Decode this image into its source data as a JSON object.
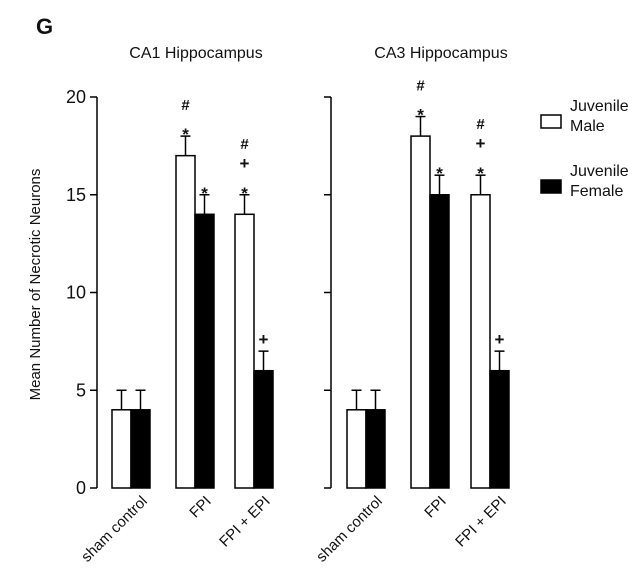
{
  "figure": {
    "panel_letter": "G",
    "legend": [
      {
        "label_lines": [
          "Juvenile",
          "Male"
        ],
        "fill": "#ffffff"
      },
      {
        "label_lines": [
          "Juvenile",
          "Female"
        ],
        "fill": "#000000"
      }
    ]
  },
  "chart_data": [
    {
      "type": "bar",
      "title": "CA1 Hippocampus",
      "ylabel": "Mean Number of Necrotic Neurons",
      "xlabel": "",
      "ylim": [
        0,
        20
      ],
      "yticks": [
        "0",
        "5",
        "10",
        "15",
        "20"
      ],
      "categories": [
        "sham control",
        "FPI",
        "FPI + EPI"
      ],
      "series": [
        {
          "name": "Juvenile Male",
          "color": "#ffffff",
          "values": [
            4,
            17,
            14
          ],
          "errors": [
            1,
            1,
            1
          ],
          "annotations": [
            [],
            [
              "*",
              "#"
            ],
            [
              "*",
              "+",
              "#"
            ]
          ]
        },
        {
          "name": "Juvenile Female",
          "color": "#000000",
          "values": [
            4,
            14,
            6
          ],
          "errors": [
            1,
            1,
            1
          ],
          "annotations": [
            [],
            [
              "*"
            ],
            [
              "+"
            ]
          ]
        }
      ]
    },
    {
      "type": "bar",
      "title": "CA3 Hippocampus",
      "ylabel": "",
      "xlabel": "",
      "ylim": [
        0,
        20
      ],
      "yticks": [],
      "categories": [
        "sham control",
        "FPI",
        "FPI + EPI"
      ],
      "series": [
        {
          "name": "Juvenile Male",
          "color": "#ffffff",
          "values": [
            4,
            18,
            15
          ],
          "errors": [
            1,
            1,
            1
          ],
          "annotations": [
            [],
            [
              "*",
              "#"
            ],
            [
              "*",
              "+",
              "#"
            ]
          ]
        },
        {
          "name": "Juvenile Female",
          "color": "#000000",
          "values": [
            4,
            15,
            6
          ],
          "errors": [
            1,
            1,
            1
          ],
          "annotations": [
            [],
            [
              "*"
            ],
            [
              "+"
            ]
          ]
        }
      ]
    }
  ]
}
